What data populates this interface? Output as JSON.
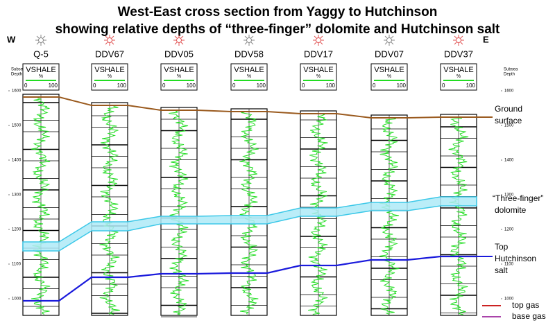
{
  "title": [
    "West-East cross section from Yaggy to Hutchinson",
    "showing relative depths of “three-finger” dolomite and Hutchinson salt"
  ],
  "west": "W",
  "east": "E",
  "depth_axis": {
    "label": [
      "Subsea",
      "Depth"
    ],
    "ticks": [
      1600,
      1500,
      1400,
      1300,
      1200,
      1100,
      1000
    ]
  },
  "track_header": {
    "curve": "VSHALE",
    "unit": "%",
    "min": "0",
    "max": "100"
  },
  "wells": [
    {
      "name": "Q-5",
      "symbol_color": "#888888",
      "ground": 1582,
      "dolomite_top": 1164,
      "dolomite_base": 1138,
      "salt": 994
    },
    {
      "name": "DDV67",
      "symbol_color": "#e05050",
      "ground": 1558,
      "dolomite_top": 1222,
      "dolomite_base": 1196,
      "salt": 1062
    },
    {
      "name": "DDV05",
      "symbol_color": "#e05050",
      "ground": 1544,
      "dolomite_top": 1238,
      "dolomite_base": 1216,
      "salt": 1072
    },
    {
      "name": "DDV58",
      "symbol_color": "#888888",
      "ground": 1540,
      "dolomite_top": 1240,
      "dolomite_base": 1216,
      "salt": 1074
    },
    {
      "name": "DDV17",
      "symbol_color": "#e05050",
      "ground": 1534,
      "dolomite_top": 1262,
      "dolomite_base": 1238,
      "salt": 1096
    },
    {
      "name": "DDV07",
      "symbol_color": "#888888",
      "ground": 1522,
      "dolomite_top": 1278,
      "dolomite_base": 1254,
      "salt": 1112
    },
    {
      "name": "DDV37",
      "symbol_color": "#e05050",
      "ground": 1524,
      "dolomite_top": 1294,
      "dolomite_base": 1268,
      "salt": 1122
    }
  ],
  "annotations": {
    "ground": [
      "Ground",
      "surface"
    ],
    "dolomite": [
      "“Three-finger”",
      "dolomite"
    ],
    "salt": [
      "Top",
      "Hutchinson",
      "salt"
    ]
  },
  "legend": [
    {
      "label": "top gas",
      "color": "#cc2222"
    },
    {
      "label": "base gas",
      "color": "#aa44aa"
    }
  ]
}
